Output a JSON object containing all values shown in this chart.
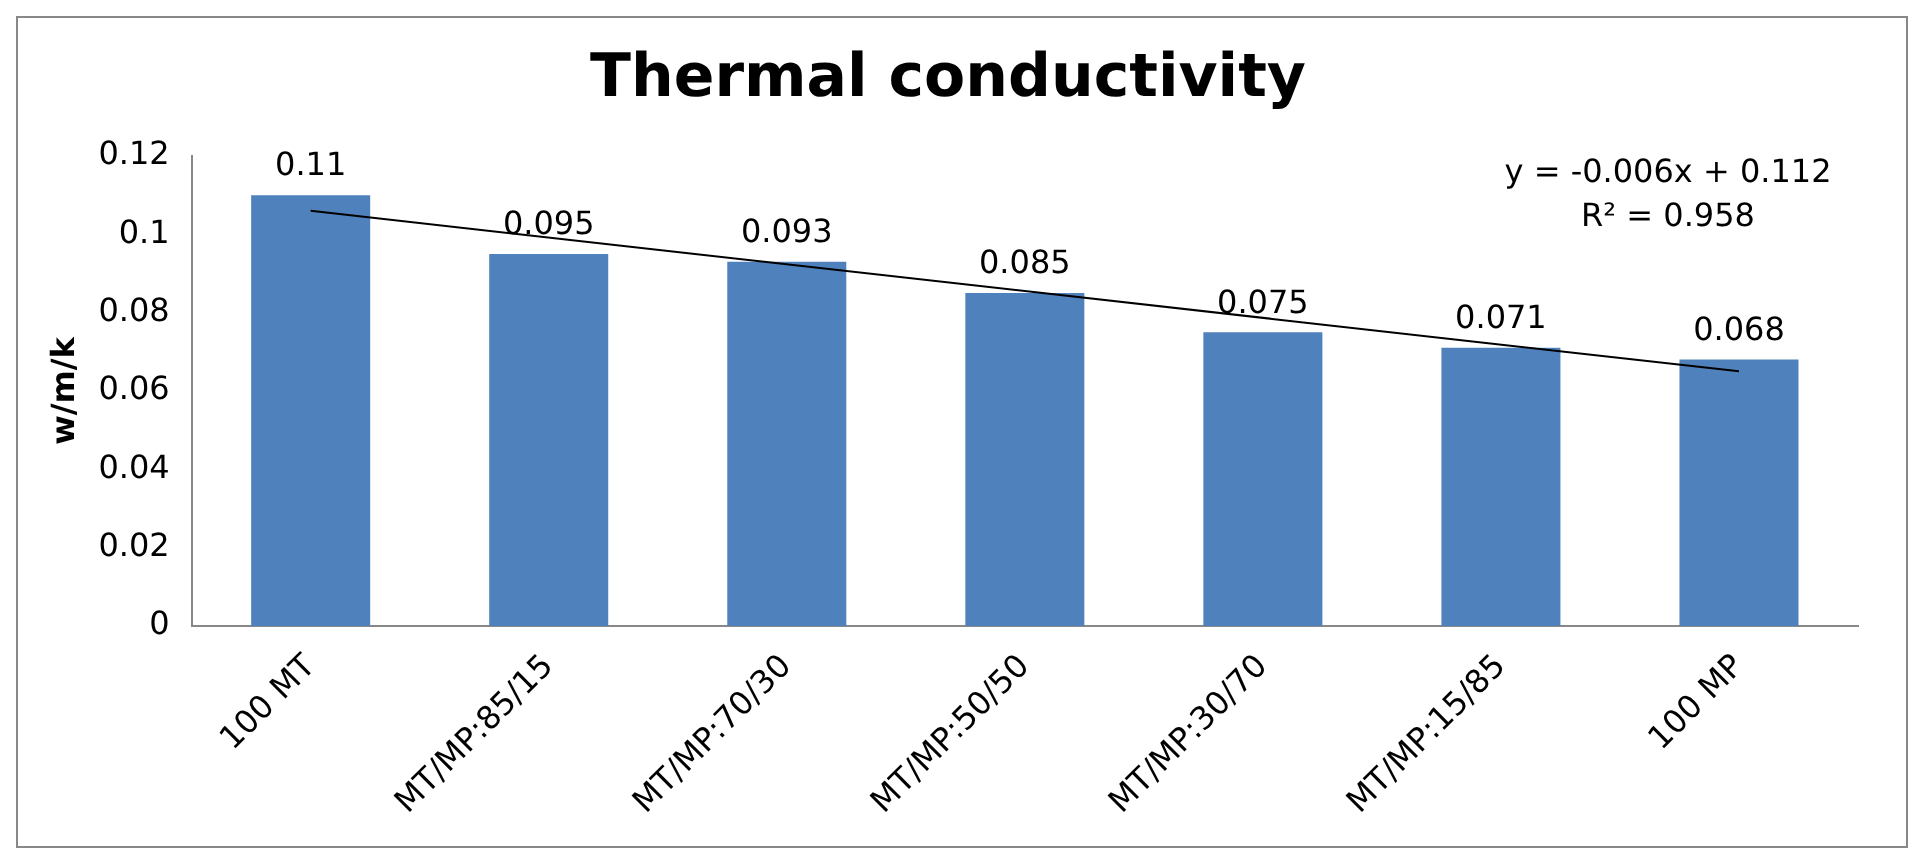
{
  "chart_data": {
    "type": "bar",
    "title": "Thermal conductivity",
    "ylabel": "w/m/k",
    "categories": [
      "100 MT",
      "MT/MP:85/15",
      "MT/MP:70/30",
      "MT/MP:50/50",
      "MT/MP:30/70",
      "MT/MP:15/85",
      "100 MP"
    ],
    "series": [
      {
        "color": "#4f81bd",
        "values": [
          0.11,
          0.095,
          0.093,
          0.085,
          0.075,
          0.071,
          0.068
        ],
        "value_labels": [
          "0.11",
          "0.095",
          "0.093",
          "0.085",
          "0.075",
          "0.071",
          "0.068"
        ]
      },
      {
        "type": "line",
        "color": "#000000",
        "x": [
          "100 MT",
          "100 MP"
        ],
        "values": [
          0.106,
          0.065
        ]
      }
    ],
    "ylim": [
      0,
      0.12
    ],
    "yticks": [
      0,
      0.02,
      0.04,
      0.06,
      0.08,
      0.1,
      0.12
    ],
    "grid": false,
    "legend": false,
    "annotations": [
      "y = -0.006x + 0.112",
      "R² = 0.958"
    ]
  }
}
